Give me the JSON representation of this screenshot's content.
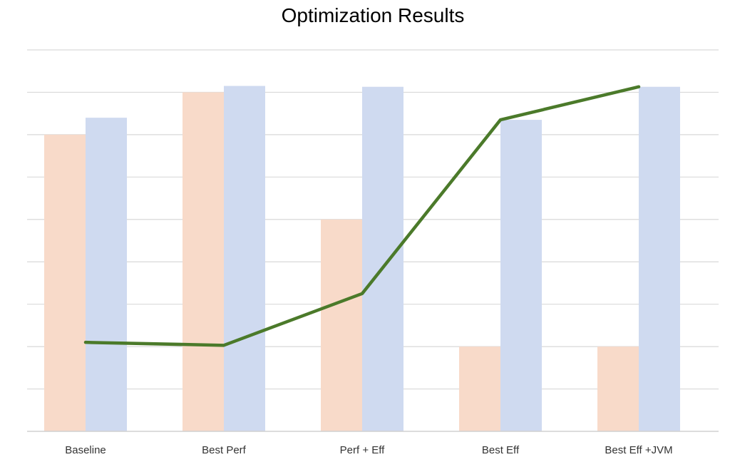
{
  "chart_data": {
    "type": "bar",
    "title": "Optimization Results",
    "xlabel": "",
    "ylabel": "",
    "categories": [
      "Baseline",
      "Best Perf",
      "Perf + Eff",
      "Best Eff",
      "Best Eff +JVM"
    ],
    "series": [
      {
        "kind": "bar",
        "color": "#f8dac9",
        "values": [
          7.0,
          8.0,
          5.0,
          2.0,
          2.0
        ]
      },
      {
        "kind": "bar",
        "color": "#cfdaf0",
        "values": [
          7.4,
          8.15,
          8.13,
          7.35,
          8.13
        ]
      },
      {
        "kind": "line",
        "color": "#4b7a2a",
        "values": [
          2.1,
          2.03,
          3.25,
          7.35,
          8.13
        ]
      }
    ],
    "ylim": [
      0,
      9
    ],
    "y_gridlines": [
      1,
      2,
      3,
      4,
      5,
      6,
      7,
      8,
      9
    ],
    "grid": true,
    "legend": "none",
    "y_tick_labels_shown": false
  }
}
